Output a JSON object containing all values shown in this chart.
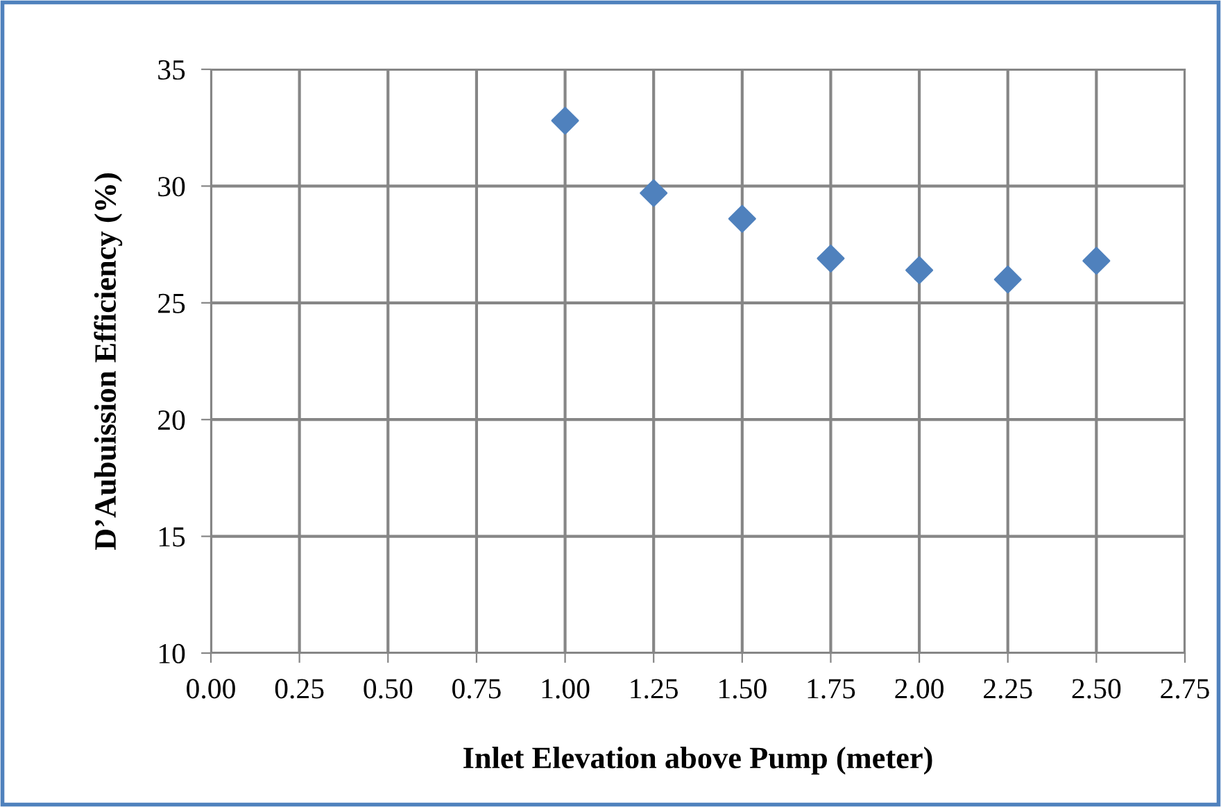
{
  "chart_data": {
    "type": "scatter",
    "xlabel": "Inlet Elevation above Pump (meter)",
    "ylabel": "D’Aubuission Efficiency (%)",
    "x": [
      1.0,
      1.25,
      1.5,
      1.75,
      2.0,
      2.25,
      2.5
    ],
    "series": [
      {
        "color": "#4f81bd",
        "values": [
          32.8,
          29.7,
          28.6,
          26.9,
          26.4,
          26.0,
          26.8
        ]
      }
    ],
    "xlim": [
      0,
      2.75
    ],
    "xticks": [
      {
        "value": 0,
        "label": "0.00"
      },
      {
        "value": 0.25,
        "label": "0.25"
      },
      {
        "value": 0.5,
        "label": "0.50"
      },
      {
        "value": 0.75,
        "label": "0.75"
      },
      {
        "value": 1.0,
        "label": "1.00"
      },
      {
        "value": 1.25,
        "label": "1.25"
      },
      {
        "value": 1.5,
        "label": "1.50"
      },
      {
        "value": 1.75,
        "label": "1.75"
      },
      {
        "value": 2.0,
        "label": "2.00"
      },
      {
        "value": 2.25,
        "label": "2.25"
      },
      {
        "value": 2.5,
        "label": "2.50"
      },
      {
        "value": 2.75,
        "label": "2.75"
      }
    ],
    "ylim": [
      10,
      35
    ],
    "yticks": [
      10,
      15,
      20,
      25,
      30,
      35
    ],
    "grid": true,
    "marker": "diamond",
    "legend": false
  }
}
